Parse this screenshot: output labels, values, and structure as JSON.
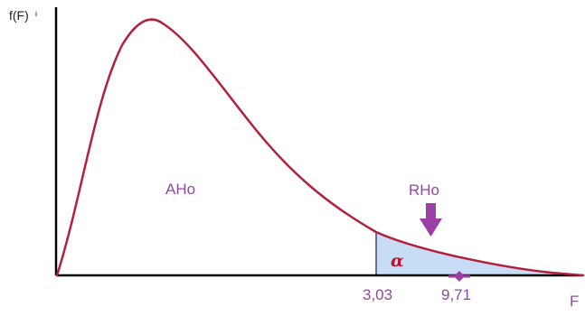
{
  "diagram": {
    "y_axis_label": "f(F)",
    "x_axis_label": "F",
    "accept_region_label": "AHo",
    "reject_region_label": "RHo",
    "alpha_label": "α",
    "critical_value_label": "3,03",
    "statistic_value_label": "9,71"
  },
  "colors": {
    "curve": "#b3203c",
    "axes": "#000000",
    "labels": "#8e4a9c",
    "rejection_fill": "#c6ddf5",
    "marker": "#9b3fa6",
    "alpha_text": "#c0102a"
  },
  "icons": {
    "reject_arrow": "down-arrow-icon",
    "statistic_marker": "diamond-marker-icon"
  }
}
